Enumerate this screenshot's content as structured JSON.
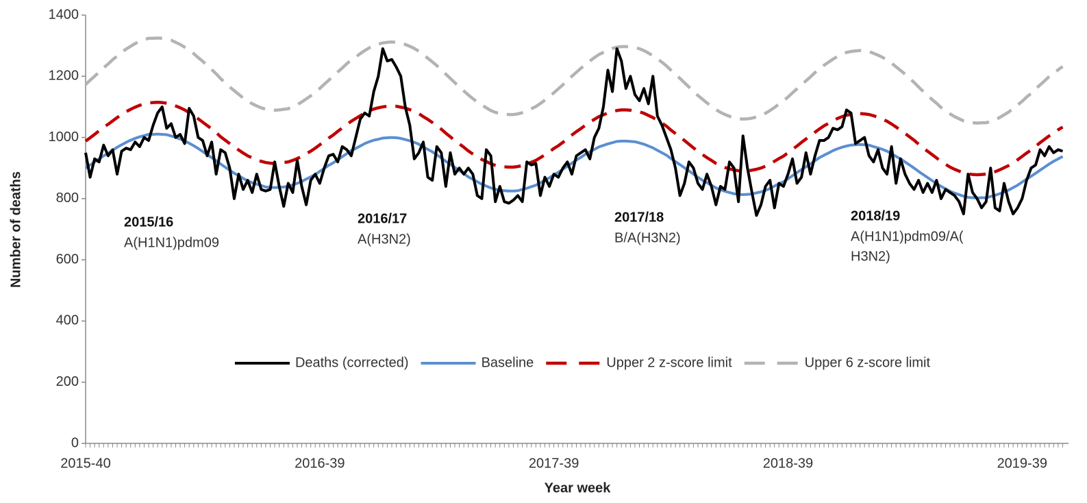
{
  "chart_data": {
    "type": "line",
    "x_label": "Year week",
    "y_label": "Number of deaths",
    "categories": [
      "2015-40",
      null,
      null,
      null,
      null,
      null,
      null,
      null,
      null,
      null,
      null,
      null,
      null,
      null,
      null,
      null,
      null,
      null,
      null,
      null,
      null,
      null,
      null,
      null,
      null,
      null,
      null,
      null,
      null,
      null,
      null,
      null,
      null,
      null,
      null,
      null,
      null,
      null,
      null,
      null,
      null,
      null,
      null,
      null,
      null,
      null,
      null,
      null,
      null,
      null,
      null,
      null,
      "2016-39",
      null,
      null,
      null,
      null,
      null,
      null,
      null,
      null,
      null,
      null,
      null,
      null,
      null,
      null,
      null,
      null,
      null,
      null,
      null,
      null,
      null,
      null,
      null,
      null,
      null,
      null,
      null,
      null,
      null,
      null,
      null,
      null,
      null,
      null,
      null,
      null,
      null,
      null,
      null,
      null,
      null,
      null,
      null,
      null,
      null,
      null,
      null,
      null,
      null,
      null,
      null,
      "2017-39",
      null,
      null,
      null,
      null,
      null,
      null,
      null,
      null,
      null,
      null,
      null,
      null,
      null,
      null,
      null,
      null,
      null,
      null,
      null,
      null,
      null,
      null,
      null,
      null,
      null,
      null,
      null,
      null,
      null,
      null,
      null,
      null,
      null,
      null,
      null,
      null,
      null,
      null,
      null,
      null,
      null,
      null,
      null,
      null,
      null,
      null,
      null,
      null,
      null,
      null,
      null,
      "2018-39",
      null,
      null,
      null,
      null,
      null,
      null,
      null,
      null,
      null,
      null,
      null,
      null,
      null,
      null,
      null,
      null,
      null,
      null,
      null,
      null,
      null,
      null,
      null,
      null,
      null,
      null,
      null,
      null,
      null,
      null,
      null,
      null,
      null,
      null,
      null,
      null,
      null,
      null,
      null,
      null,
      null,
      null,
      null,
      null,
      null,
      null,
      null,
      null,
      null,
      null,
      null,
      "2019-39",
      null,
      null,
      null,
      null,
      null,
      null,
      null,
      null,
      null
    ],
    "series": [
      {
        "name": "Deaths (corrected)",
        "color": "#000000",
        "style": "solid",
        "values": [
          950,
          870,
          930,
          920,
          975,
          940,
          960,
          880,
          955,
          965,
          960,
          985,
          970,
          1000,
          990,
          1040,
          1080,
          1100,
          1030,
          1045,
          1000,
          1010,
          980,
          1095,
          1070,
          1000,
          990,
          940,
          985,
          880,
          960,
          950,
          900,
          800,
          880,
          830,
          860,
          820,
          880,
          830,
          825,
          830,
          920,
          840,
          775,
          850,
          820,
          925,
          840,
          780,
          860,
          880,
          850,
          900,
          940,
          945,
          920,
          970,
          960,
          940,
          1000,
          1060,
          1080,
          1070,
          1150,
          1200,
          1290,
          1250,
          1255,
          1230,
          1200,
          1100,
          1040,
          930,
          950,
          985,
          870,
          860,
          970,
          950,
          840,
          950,
          880,
          900,
          880,
          900,
          880,
          810,
          800,
          960,
          940,
          790,
          840,
          790,
          785,
          795,
          810,
          790,
          920,
          910,
          915,
          810,
          870,
          840,
          880,
          870,
          900,
          920,
          880,
          940,
          950,
          960,
          930,
          1000,
          1030,
          1100,
          1220,
          1150,
          1290,
          1250,
          1160,
          1200,
          1140,
          1120,
          1160,
          1110,
          1200,
          1070,
          1040,
          1000,
          960,
          900,
          810,
          850,
          920,
          900,
          850,
          830,
          880,
          840,
          780,
          840,
          830,
          920,
          900,
          790,
          1005,
          900,
          820,
          745,
          780,
          840,
          860,
          770,
          850,
          840,
          880,
          930,
          850,
          870,
          950,
          880,
          940,
          990,
          990,
          1000,
          1030,
          1025,
          1035,
          1090,
          1080,
          980,
          990,
          1000,
          940,
          920,
          960,
          900,
          880,
          970,
          850,
          930,
          880,
          850,
          830,
          860,
          820,
          850,
          820,
          860,
          800,
          830,
          820,
          810,
          790,
          750,
          880,
          820,
          800,
          770,
          790,
          900,
          770,
          760,
          850,
          790,
          750,
          770,
          800,
          860,
          900,
          910,
          960,
          940,
          970,
          950,
          960,
          955
        ]
      },
      {
        "name": "Baseline",
        "color": "#5b8fd0",
        "style": "solid",
        "values": [
          900,
          910,
          920,
          930,
          940,
          948,
          958,
          968,
          976,
          984,
          991,
          997,
          1002,
          1006,
          1010,
          1010,
          1011,
          1010,
          1009,
          1005,
          1000,
          995,
          989,
          981,
          973,
          964,
          954,
          944,
          934,
          924,
          913,
          903,
          893,
          883,
          875,
          866,
          858,
          852,
          847,
          843,
          838,
          837,
          836,
          837,
          838,
          841,
          845,
          850,
          856,
          864,
          871,
          879,
          889,
          899,
          909,
          917,
          927,
          937,
          947,
          957,
          964,
          972,
          980,
          986,
          991,
          994,
          998,
          999,
          1000,
          999,
          997,
          993,
          989,
          984,
          978,
          969,
          961,
          953,
          943,
          933,
          922,
          912,
          902,
          892,
          882,
          871,
          863,
          855,
          847,
          841,
          835,
          831,
          827,
          826,
          825,
          825,
          826,
          830,
          834,
          839,
          844,
          852,
          860,
          868,
          878,
          886,
          896,
          906,
          916,
          926,
          935,
          945,
          953,
          961,
          969,
          974,
          979,
          983,
          987,
          988,
          988,
          987,
          986,
          982,
          978,
          972,
          966,
          958,
          950,
          942,
          931,
          921,
          911,
          901,
          891,
          880,
          870,
          860,
          852,
          844,
          835,
          829,
          824,
          820,
          816,
          814,
          813,
          814,
          815,
          819,
          822,
          827,
          833,
          841,
          849,
          855,
          865,
          875,
          885,
          895,
          904,
          914,
          924,
          934,
          942,
          949,
          957,
          963,
          968,
          972,
          975,
          976,
          977,
          976,
          975,
          970,
          966,
          961,
          955,
          947,
          938,
          930,
          920,
          910,
          900,
          889,
          879,
          869,
          859,
          849,
          840,
          832,
          824,
          818,
          813,
          808,
          804,
          803,
          802,
          803,
          803,
          807,
          811,
          816,
          822,
          828,
          836,
          844,
          854,
          864,
          873,
          883,
          893,
          903,
          913,
          922,
          930,
          938
        ]
      },
      {
        "name": "Upper 2 z-score limit",
        "color": "#c00000",
        "style": "dashed",
        "values": [
          988,
          999,
          1010,
          1022,
          1034,
          1043,
          1054,
          1065,
          1075,
          1084,
          1092,
          1099,
          1105,
          1110,
          1113,
          1114,
          1115,
          1114,
          1112,
          1109,
          1103,
          1097,
          1090,
          1081,
          1072,
          1061,
          1050,
          1039,
          1028,
          1016,
          1002,
          991,
          980,
          969,
          959,
          949,
          940,
          933,
          927,
          922,
          918,
          916,
          915,
          916,
          918,
          920,
          925,
          931,
          938,
          947,
          955,
          965,
          976,
          987,
          998,
          1008,
          1020,
          1031,
          1042,
          1053,
          1062,
          1071,
          1080,
          1087,
          1093,
          1097,
          1100,
          1102,
          1103,
          1102,
          1099,
          1096,
          1091,
          1085,
          1078,
          1068,
          1059,
          1049,
          1038,
          1027,
          1014,
          1002,
          990,
          979,
          968,
          956,
          946,
          937,
          928,
          921,
          914,
          909,
          906,
          904,
          903,
          903,
          905,
          908,
          913,
          919,
          925,
          934,
          943,
          953,
          964,
          973,
          984,
          996,
          1008,
          1019,
          1029,
          1040,
          1050,
          1059,
          1068,
          1074,
          1080,
          1085,
          1088,
          1090,
          1090,
          1089,
          1087,
          1084,
          1079,
          1072,
          1065,
          1056,
          1047,
          1037,
          1024,
          1013,
          1002,
          990,
          978,
          966,
          955,
          944,
          934,
          925,
          915,
          908,
          902,
          897,
          894,
          891,
          890,
          891,
          893,
          896,
          900,
          906,
          913,
          922,
          931,
          939,
          950,
          961,
          972,
          984,
          995,
          1006,
          1017,
          1028,
          1038,
          1046,
          1055,
          1062,
          1068,
          1073,
          1075,
          1077,
          1078,
          1077,
          1075,
          1071,
          1066,
          1060,
          1053,
          1044,
          1034,
          1024,
          1013,
          1002,
          991,
          978,
          966,
          955,
          944,
          933,
          921,
          912,
          903,
          896,
          890,
          884,
          881,
          879,
          878,
          879,
          880,
          883,
          888,
          894,
          901,
          908,
          917,
          927,
          938,
          949,
          959,
          971,
          983,
          994,
          1005,
          1015,
          1025,
          1034
        ]
      },
      {
        "name": "Upper 6 z-score limit",
        "color": "#b3b3b3",
        "style": "dashed",
        "values": [
          1173,
          1187,
          1200,
          1214,
          1228,
          1240,
          1254,
          1266,
          1278,
          1289,
          1298,
          1307,
          1314,
          1320,
          1324,
          1324,
          1325,
          1324,
          1322,
          1318,
          1311,
          1304,
          1295,
          1285,
          1274,
          1261,
          1249,
          1235,
          1222,
          1208,
          1192,
          1179,
          1165,
          1153,
          1141,
          1129,
          1119,
          1110,
          1103,
          1097,
          1092,
          1090,
          1089,
          1090,
          1092,
          1094,
          1100,
          1107,
          1116,
          1126,
          1136,
          1148,
          1160,
          1174,
          1187,
          1200,
          1214,
          1227,
          1241,
          1253,
          1263,
          1274,
          1284,
          1293,
          1300,
          1305,
          1309,
          1311,
          1312,
          1311,
          1308,
          1304,
          1298,
          1291,
          1282,
          1270,
          1259,
          1247,
          1235,
          1221,
          1207,
          1193,
          1179,
          1166,
          1152,
          1139,
          1127,
          1116,
          1106,
          1097,
          1088,
          1082,
          1078,
          1076,
          1075,
          1075,
          1077,
          1081,
          1087,
          1094,
          1101,
          1111,
          1122,
          1134,
          1146,
          1159,
          1172,
          1186,
          1200,
          1213,
          1226,
          1238,
          1250,
          1261,
          1271,
          1278,
          1285,
          1291,
          1295,
          1297,
          1297,
          1296,
          1294,
          1290,
          1284,
          1276,
          1267,
          1257,
          1246,
          1234,
          1220,
          1206,
          1193,
          1179,
          1165,
          1151,
          1137,
          1125,
          1113,
          1102,
          1091,
          1082,
          1075,
          1069,
          1065,
          1061,
          1060,
          1061,
          1063,
          1067,
          1072,
          1079,
          1088,
          1098,
          1109,
          1120,
          1132,
          1146,
          1159,
          1173,
          1185,
          1198,
          1212,
          1224,
          1236,
          1246,
          1256,
          1265,
          1272,
          1278,
          1281,
          1283,
          1284,
          1283,
          1281,
          1275,
          1269,
          1262,
          1253,
          1243,
          1231,
          1219,
          1207,
          1193,
          1180,
          1165,
          1151,
          1138,
          1124,
          1112,
          1098,
          1087,
          1077,
          1068,
          1061,
          1054,
          1050,
          1048,
          1047,
          1048,
          1048,
          1052,
          1058,
          1065,
          1074,
          1083,
          1094,
          1106,
          1118,
          1132,
          1144,
          1158,
          1172,
          1185,
          1199,
          1209,
          1221,
          1232
        ]
      }
    ],
    "ylim": [
      0,
      1400
    ],
    "yticks": [
      0,
      200,
      400,
      600,
      800,
      1000,
      1200,
      1400
    ],
    "grid": false,
    "legend": "bottom",
    "annotations": [
      {
        "title": "2015/16",
        "lines": [
          "A(H1N1)pdm09"
        ]
      },
      {
        "title": "2016/17",
        "lines": [
          "A(H3N2)"
        ]
      },
      {
        "title": "2017/18",
        "lines": [
          "B/A(H3N2)"
        ]
      },
      {
        "title": "2018/19",
        "lines": [
          "A(H1N1)pdm09/A(",
          "H3N2)"
        ]
      }
    ]
  }
}
